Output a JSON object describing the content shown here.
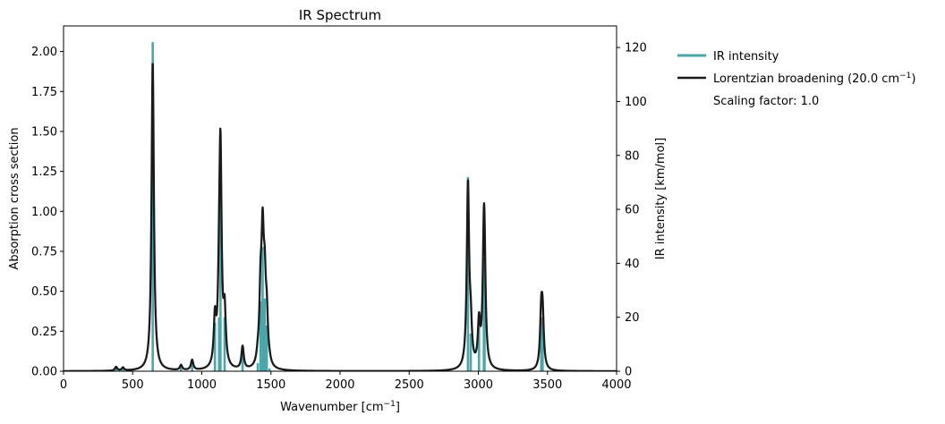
{
  "chart_data": {
    "type": "line",
    "title": "IR Spectrum",
    "xlabel": "Wavenumber [cm",
    "xlabel_sup": "−1",
    "xlabel_end": "]",
    "ylabel_left": "Absorption cross section",
    "ylabel_right": "IR intensity [km/mol]",
    "xlim": [
      0,
      4000
    ],
    "ylim_left": [
      0,
      2.16
    ],
    "ylim_right": [
      0,
      128
    ],
    "xticks": [
      0,
      500,
      1000,
      1500,
      2000,
      2500,
      3000,
      3500,
      4000
    ],
    "xtick_labels": [
      "0",
      "500",
      "1000",
      "1500",
      "2000",
      "2500",
      "3000",
      "3500",
      "4000"
    ],
    "yticks_left": [
      0,
      0.25,
      0.5,
      0.75,
      1.0,
      1.25,
      1.5,
      1.75,
      2.0
    ],
    "ytick_labels_left": [
      "0.00",
      "0.25",
      "0.50",
      "0.75",
      "1.00",
      "1.25",
      "1.50",
      "1.75",
      "2.00"
    ],
    "yticks_right": [
      0,
      20,
      40,
      60,
      80,
      100,
      120
    ],
    "ytick_labels_right": [
      "0",
      "20",
      "40",
      "60",
      "80",
      "100",
      "120"
    ],
    "colors": {
      "stick": "#4aa7a9",
      "curve": "#1a1a1a"
    },
    "legend": {
      "placement": "outside-top-right",
      "entries": [
        {
          "label": "IR intensity",
          "kind": "stick"
        },
        {
          "label": "Lorentzian broadening (20.0 cm",
          "sup": "−1",
          "end": ")",
          "kind": "curve"
        },
        {
          "label": "Scaling factor: 1.0",
          "kind": "text"
        }
      ]
    },
    "series": [
      {
        "name": "IR intensity",
        "kind": "stick",
        "axis": "right",
        "points": [
          [
            380,
            1.5
          ],
          [
            430,
            1.2
          ],
          [
            645,
            122
          ],
          [
            850,
            2
          ],
          [
            930,
            4
          ],
          [
            1095,
            18
          ],
          [
            1125,
            20
          ],
          [
            1135,
            82
          ],
          [
            1165,
            20
          ],
          [
            1295,
            9
          ],
          [
            1405,
            3
          ],
          [
            1425,
            26
          ],
          [
            1440,
            46
          ],
          [
            1455,
            27
          ],
          [
            1470,
            17
          ],
          [
            1490,
            1
          ],
          [
            2925,
            72
          ],
          [
            2945,
            14
          ],
          [
            3005,
            17
          ],
          [
            3040,
            42
          ],
          [
            3045,
            26
          ],
          [
            3455,
            20
          ],
          [
            3465,
            19
          ]
        ]
      },
      {
        "name": "Lorentzian broadening (20.0 cm−1)",
        "kind": "lorentzian",
        "axis": "left",
        "fwhm": 20.0,
        "y_scale": 0.0159
      }
    ]
  }
}
